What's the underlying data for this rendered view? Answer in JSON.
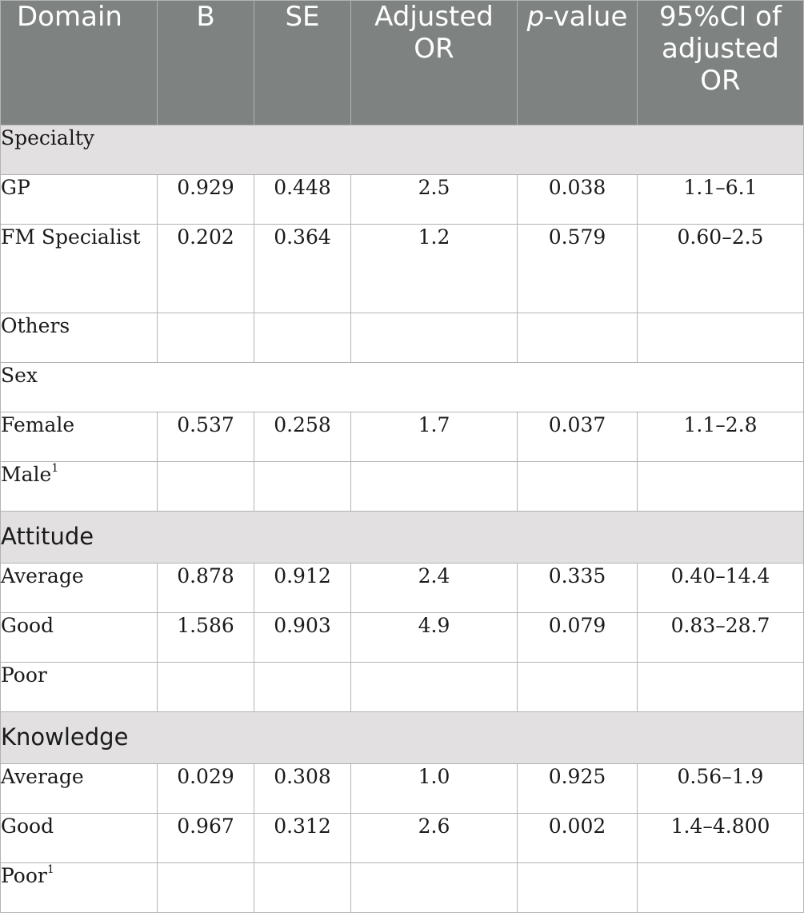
{
  "header": {
    "domain": "Domain",
    "b": "B",
    "se": "SE",
    "adjusted_or": "Adjusted OR",
    "p_italic": "p",
    "p_rest": "-value",
    "ci": "95%CI of adjusted OR"
  },
  "rows": [
    {
      "label": "Specialty"
    },
    {
      "label": "GP",
      "b": "0.929",
      "se": "0.448",
      "or": "2.5",
      "p": "0.038",
      "ci": "1.1–6.1"
    },
    {
      "label": "FM Specialist",
      "b": "0.202",
      "se": "0.364",
      "or": "1.2",
      "p": "0.579",
      "ci": "0.60–2.5"
    },
    {
      "label": "Others",
      "b": "",
      "se": "",
      "or": "",
      "p": "",
      "ci": ""
    },
    {
      "label": "Sex"
    },
    {
      "label": "Female",
      "b": "0.537",
      "se": "0.258",
      "or": "1.7",
      "p": "0.037",
      "ci": "1.1–2.8"
    },
    {
      "label": "Male",
      "sup": "1",
      "b": "",
      "se": "",
      "or": "",
      "p": "",
      "ci": ""
    },
    {
      "label": "Attitude"
    },
    {
      "label": "Average",
      "b": "0.878",
      "se": "0.912",
      "or": "2.4",
      "p": "0.335",
      "ci": "0.40–14.4"
    },
    {
      "label": "Good",
      "b": "1.586",
      "se": "0.903",
      "or": "4.9",
      "p": "0.079",
      "ci": "0.83–28.7"
    },
    {
      "label": "Poor",
      "b": "",
      "se": "",
      "or": "",
      "p": "",
      "ci": ""
    },
    {
      "label": "Knowledge"
    },
    {
      "label": "Average",
      "b": "0.029",
      "se": "0.308",
      "or": "1.0",
      "p": "0.925",
      "ci": "0.56–1.9"
    },
    {
      "label": "Good",
      "b": "0.967",
      "se": "0.312",
      "or": "2.6",
      "p": "0.002",
      "ci": "1.4–4.800"
    },
    {
      "label": "Poor",
      "sup": "1",
      "b": "",
      "se": "",
      "or": "",
      "p": "",
      "ci": ""
    }
  ]
}
